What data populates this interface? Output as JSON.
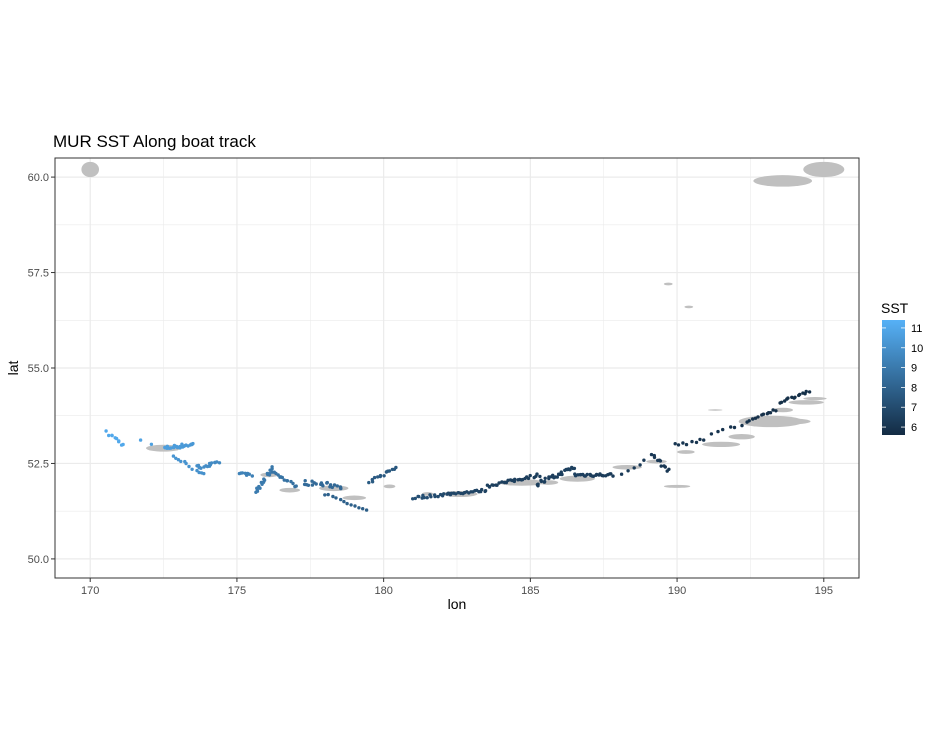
{
  "chart_data": {
    "type": "scatter",
    "title": "MUR SST Along boat track",
    "xlabel": "lon",
    "ylabel": "lat",
    "xlim": [
      168.8,
      196.2
    ],
    "ylim": [
      49.5,
      60.5
    ],
    "x_ticks": [
      170,
      175,
      180,
      185,
      190,
      195
    ],
    "x_tick_labels": [
      "170",
      "175",
      "180",
      "185",
      "190",
      "195"
    ],
    "y_ticks": [
      50.0,
      52.5,
      55.0,
      57.5,
      60.0
    ],
    "y_tick_labels": [
      "50.0",
      "52.5",
      "55.0",
      "57.5",
      "60.0"
    ],
    "grid": true,
    "legend": {
      "title": "SST",
      "placement": "right",
      "ticks": [
        6,
        7,
        8,
        9,
        10,
        11
      ],
      "tick_labels": [
        "6",
        "7",
        "8",
        "9",
        "10",
        "11"
      ],
      "range": [
        5.6,
        11.4
      ],
      "color_low": "#132B43",
      "color_high": "#56B1F7"
    },
    "colors": {
      "panel_border": "#333333",
      "grid_major": "#ebebeb",
      "land": "#c0c0c0"
    },
    "land": [
      [
        170.0,
        60.2,
        0.6,
        0.4
      ],
      [
        190.0,
        51.9,
        0.9,
        0.08
      ],
      [
        193.2,
        53.6,
        2.2,
        0.3
      ],
      [
        194.4,
        54.1,
        1.2,
        0.12
      ],
      [
        172.5,
        52.9,
        1.2,
        0.18
      ],
      [
        176.8,
        51.8,
        0.7,
        0.12
      ],
      [
        178.3,
        51.85,
        1.0,
        0.15
      ],
      [
        179.0,
        51.6,
        0.8,
        0.12
      ],
      [
        182.6,
        51.7,
        1.2,
        0.16
      ],
      [
        184.7,
        52.0,
        1.6,
        0.17
      ],
      [
        186.6,
        52.1,
        1.2,
        0.16
      ],
      [
        188.3,
        52.4,
        1.0,
        0.12
      ],
      [
        191.5,
        53.0,
        1.3,
        0.14
      ],
      [
        176.1,
        52.2,
        0.6,
        0.12
      ],
      [
        180.2,
        51.9,
        0.4,
        0.1
      ],
      [
        181.5,
        51.7,
        0.4,
        0.1
      ],
      [
        184.2,
        52.0,
        0.6,
        0.1
      ],
      [
        185.6,
        52.0,
        0.7,
        0.12
      ],
      [
        189.3,
        52.55,
        0.7,
        0.1
      ],
      [
        192.2,
        53.2,
        0.9,
        0.14
      ],
      [
        194.7,
        54.2,
        0.8,
        0.08
      ],
      [
        193.9,
        53.6,
        1.3,
        0.15
      ],
      [
        190.3,
        52.8,
        0.6,
        0.1
      ],
      [
        193.6,
        53.9,
        0.7,
        0.12
      ],
      [
        189.7,
        57.2,
        0.3,
        0.07
      ],
      [
        190.4,
        56.6,
        0.3,
        0.07
      ],
      [
        191.3,
        53.9,
        0.5,
        0.04
      ],
      [
        193.6,
        59.9,
        2.0,
        0.3
      ],
      [
        195.0,
        60.2,
        1.4,
        0.4
      ]
    ],
    "tracks": [
      {
        "x": [
          170.6,
          171.1
        ],
        "y": [
          53.3,
          53.0
        ],
        "sst": [
          11.0,
          11.0
        ],
        "n": 10,
        "jitter": 0.12
      },
      {
        "x": [
          171.7,
          172.1
        ],
        "y": [
          53.1,
          53.0
        ],
        "sst": [
          10.8,
          10.7
        ],
        "n": 2,
        "jitter": 0.04
      },
      {
        "x": [
          172.5,
          173.5
        ],
        "y": [
          52.9,
          53.0
        ],
        "sst": [
          10.6,
          10.3
        ],
        "n": 24,
        "jitter": 0.1
      },
      {
        "x": [
          172.8,
          173.9
        ],
        "y": [
          52.7,
          52.2
        ],
        "sst": [
          10.2,
          10.0
        ],
        "n": 12,
        "jitter": 0.08
      },
      {
        "x": [
          173.6,
          174.4
        ],
        "y": [
          52.4,
          52.5
        ],
        "sst": [
          9.9,
          9.7
        ],
        "n": 16,
        "jitter": 0.1
      },
      {
        "x": [
          175.1,
          175.5
        ],
        "y": [
          52.25,
          52.2
        ],
        "sst": [
          9.4,
          9.3
        ],
        "n": 8,
        "jitter": 0.06
      },
      {
        "x": [
          175.6,
          176.2
        ],
        "y": [
          51.7,
          52.4
        ],
        "sst": [
          9.1,
          8.9
        ],
        "n": 18,
        "jitter": 0.12
      },
      {
        "x": [
          176.2,
          177.0
        ],
        "y": [
          52.3,
          51.9
        ],
        "sst": [
          8.8,
          8.6
        ],
        "n": 14,
        "jitter": 0.08
      },
      {
        "x": [
          177.3,
          178.6
        ],
        "y": [
          52.0,
          51.9
        ],
        "sst": [
          8.4,
          8.2
        ],
        "n": 22,
        "jitter": 0.12
      },
      {
        "x": [
          178.0,
          179.4
        ],
        "y": [
          51.7,
          51.25
        ],
        "sst": [
          8.0,
          7.8
        ],
        "n": 12,
        "jitter": 0.06
      },
      {
        "x": [
          179.5,
          180.4
        ],
        "y": [
          52.0,
          52.4
        ],
        "sst": [
          7.7,
          7.5
        ],
        "n": 14,
        "jitter": 0.1
      },
      {
        "x": [
          181.0,
          182.2
        ],
        "y": [
          51.6,
          51.7
        ],
        "sst": [
          7.2,
          6.9
        ],
        "n": 18,
        "jitter": 0.08
      },
      {
        "x": [
          182.2,
          183.5
        ],
        "y": [
          51.7,
          51.8
        ],
        "sst": [
          6.8,
          6.6
        ],
        "n": 20,
        "jitter": 0.06
      },
      {
        "x": [
          183.5,
          185.3
        ],
        "y": [
          51.9,
          52.2
        ],
        "sst": [
          6.5,
          6.4
        ],
        "n": 28,
        "jitter": 0.08
      },
      {
        "x": [
          185.2,
          186.5
        ],
        "y": [
          51.95,
          52.4
        ],
        "sst": [
          6.4,
          6.5
        ],
        "n": 28,
        "jitter": 0.12
      },
      {
        "x": [
          186.5,
          187.8
        ],
        "y": [
          52.2,
          52.2
        ],
        "sst": [
          6.5,
          6.3
        ],
        "n": 24,
        "jitter": 0.08
      },
      {
        "x": [
          188.1,
          189.1
        ],
        "y": [
          52.2,
          52.7
        ],
        "sst": [
          6.3,
          6.2
        ],
        "n": 6,
        "jitter": 0.08
      },
      {
        "x": [
          189.2,
          189.7
        ],
        "y": [
          52.7,
          52.3
        ],
        "sst": [
          6.2,
          6.1
        ],
        "n": 10,
        "jitter": 0.1
      },
      {
        "x": [
          189.9,
          190.9
        ],
        "y": [
          53.0,
          53.1
        ],
        "sst": [
          6.1,
          6.0
        ],
        "n": 8,
        "jitter": 0.1
      },
      {
        "x": [
          191.2,
          192.2
        ],
        "y": [
          53.3,
          53.5
        ],
        "sst": [
          6.0,
          5.9
        ],
        "n": 6,
        "jitter": 0.1
      },
      {
        "x": [
          192.4,
          193.4
        ],
        "y": [
          53.6,
          53.9
        ],
        "sst": [
          5.9,
          5.8
        ],
        "n": 12,
        "jitter": 0.08
      },
      {
        "x": [
          193.5,
          194.5
        ],
        "y": [
          54.1,
          54.4
        ],
        "sst": [
          5.8,
          5.8
        ],
        "n": 14,
        "jitter": 0.06
      }
    ]
  }
}
